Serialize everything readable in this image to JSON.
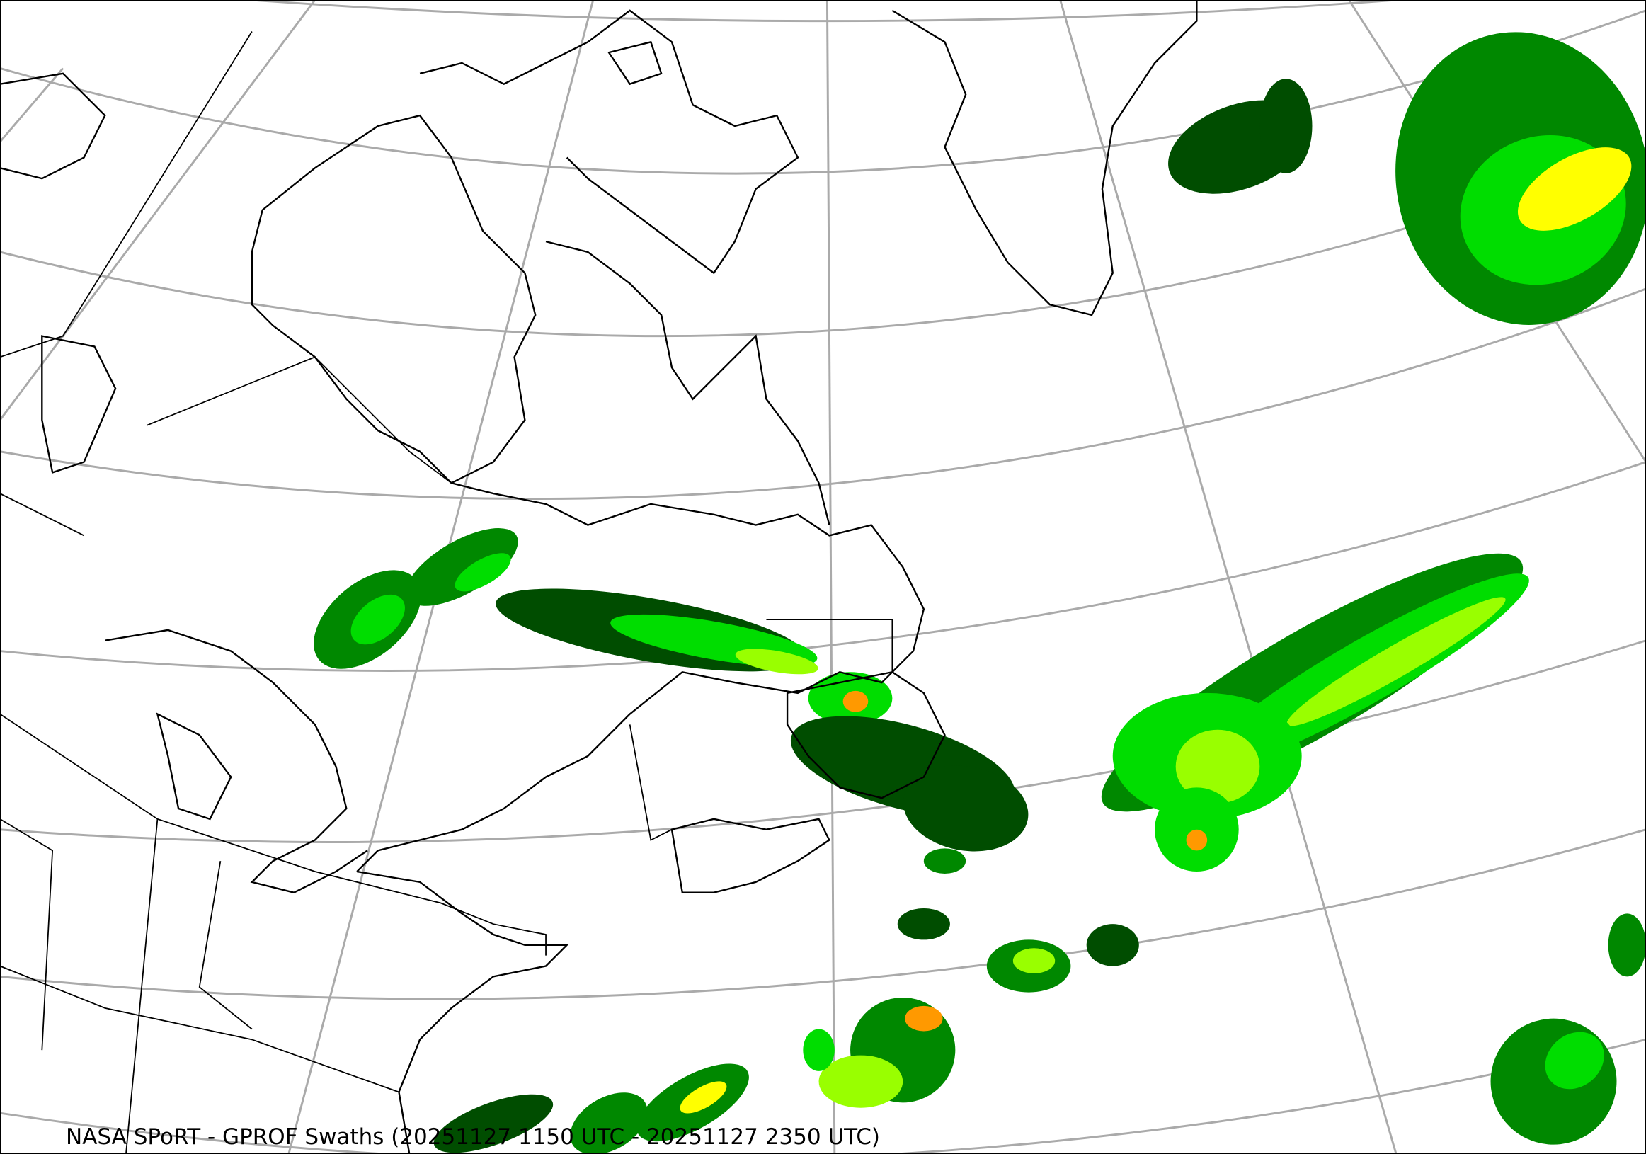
{
  "title": "NASA SPoRT - GPROF Swaths (20251127 1150 UTC - 20251127 2350 UTC)",
  "map": {
    "region": "Northeastern North America, Greenland and North Atlantic",
    "graticule_color": "#aaaaaa",
    "coastline_color": "#000000",
    "precip_colors": [
      "#004d00",
      "#008800",
      "#00dd00",
      "#99ff00",
      "#ffff00",
      "#ff9900",
      "#ff0000"
    ]
  }
}
